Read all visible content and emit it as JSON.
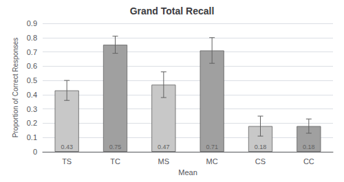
{
  "chart_data": {
    "type": "bar",
    "title": "Grand Total Recall",
    "xlabel": "Mean",
    "ylabel": "Proportion of Correct Responses",
    "categories": [
      "TS",
      "TC",
      "MS",
      "MC",
      "CS",
      "CC"
    ],
    "values": [
      0.43,
      0.75,
      0.47,
      0.71,
      0.18,
      0.18
    ],
    "errors": [
      0.07,
      0.06,
      0.09,
      0.09,
      0.07,
      0.05
    ],
    "colors": [
      "#c8c8c8",
      "#a0a0a0",
      "#c8c8c8",
      "#a0a0a0",
      "#c8c8c8",
      "#a0a0a0"
    ],
    "ylim": [
      0,
      0.9
    ],
    "yticks": [
      0,
      0.1,
      0.2,
      0.3,
      0.4,
      0.5,
      0.6,
      0.7,
      0.8,
      0.9
    ],
    "grid": true,
    "data_labels": true
  }
}
